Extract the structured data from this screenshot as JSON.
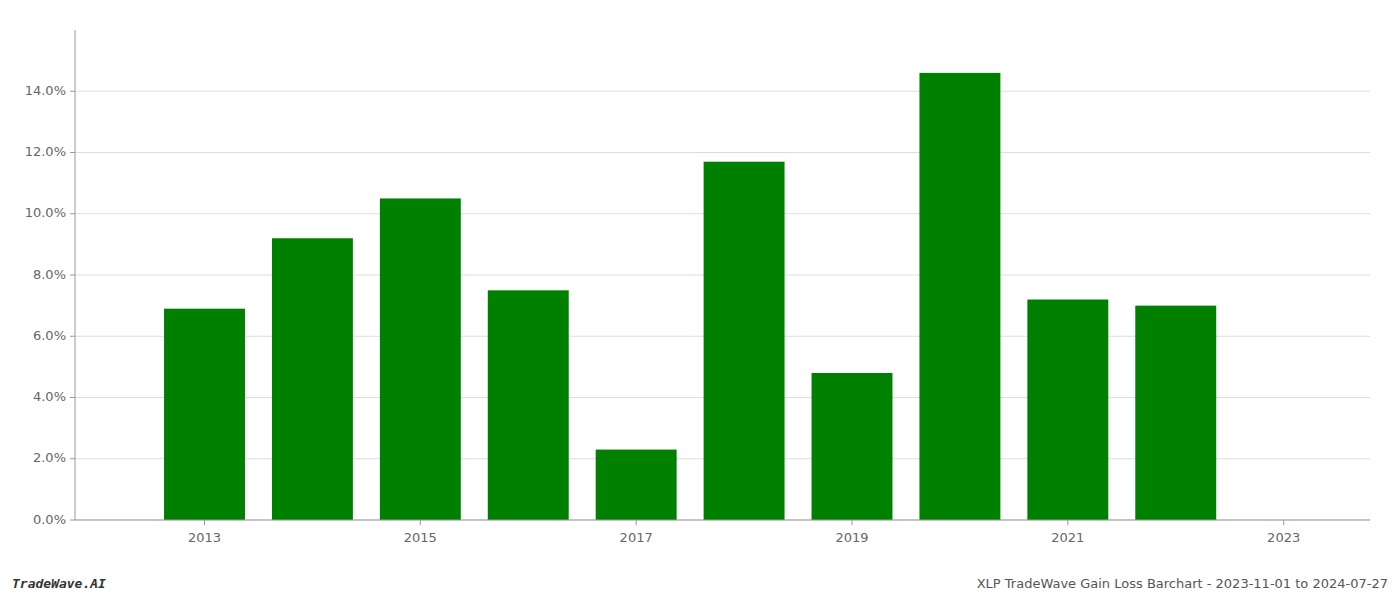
{
  "chart_data": {
    "type": "bar",
    "x": [
      2013,
      2014,
      2015,
      2016,
      2017,
      2018,
      2019,
      2020,
      2021,
      2022
    ],
    "values": [
      0.069,
      0.092,
      0.105,
      0.075,
      0.023,
      0.117,
      0.048,
      0.146,
      0.072,
      0.07
    ],
    "color": "#008000",
    "xlim": [
      2011.8,
      2023.8
    ],
    "xticks": [
      2013,
      2015,
      2017,
      2019,
      2021,
      2023
    ],
    "ylim": [
      0,
      0.16
    ],
    "yticks": [
      {
        "value": 0.0,
        "label": "0.0%"
      },
      {
        "value": 0.02,
        "label": "2.0%"
      },
      {
        "value": 0.04,
        "label": "4.0%"
      },
      {
        "value": 0.06,
        "label": "6.0%"
      },
      {
        "value": 0.08,
        "label": "8.0%"
      },
      {
        "value": 0.1,
        "label": "10.0%"
      },
      {
        "value": 0.12,
        "label": "12.0%"
      },
      {
        "value": 0.14,
        "label": "14.0%"
      }
    ],
    "grid": true,
    "annotations": [
      "TradeWave.AI",
      "XLP TradeWave Gain Loss Barchart - 2023-11-01 to 2024-07-27"
    ]
  }
}
